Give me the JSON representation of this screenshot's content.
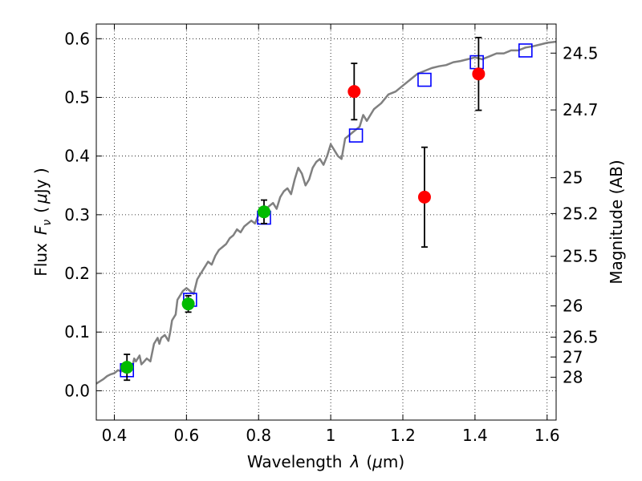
{
  "chart_data": {
    "type": "scatter",
    "xlabel_plain": "Wavelength",
    "xlabel_symbol": "λ",
    "xlabel_unit_open": "(",
    "xlabel_unit_mu": "μ",
    "xlabel_unit_rest": "m)",
    "ylabel_plain": "Flux",
    "ylabel_symbol": "F",
    "ylabel_sub": "ν",
    "ylabel_unit_open": "(",
    "ylabel_unit_mu": "μ",
    "ylabel_unit_rest": "Jy )",
    "y2label": "Magnitude (AB)",
    "xlim": [
      0.35,
      1.625
    ],
    "ylim": [
      -0.05,
      0.625
    ],
    "grid": true,
    "xticks": [
      0.4,
      0.6,
      0.8,
      1.0,
      1.2,
      1.4,
      1.6
    ],
    "xtick_labels": [
      "0.4",
      "0.6",
      "0.8",
      "1",
      "1.2",
      "1.4",
      "1.6"
    ],
    "yticks": [
      0.0,
      0.1,
      0.2,
      0.3,
      0.4,
      0.5,
      0.6
    ],
    "ytick_labels": [
      "0.0",
      "0.1",
      "0.2",
      "0.3",
      "0.4",
      "0.5",
      "0.6"
    ],
    "magnitude_ticks": [
      24.5,
      24.7,
      25,
      25.2,
      25.5,
      26,
      26.5,
      27,
      28
    ],
    "magnitude_tick_labels": [
      "24.5",
      "24.7",
      "25",
      "25.2",
      "25.5",
      "26",
      "26.5",
      "27",
      "28"
    ],
    "colors": {
      "model": "#808080",
      "model_points": "#0000ff",
      "detections": "#00bb00",
      "other_points": "#ff0000",
      "errorbars": "#000000"
    },
    "series": [
      {
        "name": "model-spectrum",
        "style": "line",
        "x": [
          0.35,
          0.37,
          0.38,
          0.39,
          0.4,
          0.41,
          0.42,
          0.43,
          0.44,
          0.45,
          0.455,
          0.46,
          0.47,
          0.475,
          0.48,
          0.49,
          0.5,
          0.51,
          0.52,
          0.525,
          0.53,
          0.54,
          0.55,
          0.555,
          0.56,
          0.57,
          0.575,
          0.58,
          0.59,
          0.6,
          0.61,
          0.62,
          0.63,
          0.64,
          0.65,
          0.66,
          0.67,
          0.68,
          0.69,
          0.7,
          0.71,
          0.72,
          0.73,
          0.74,
          0.75,
          0.76,
          0.77,
          0.78,
          0.79,
          0.8,
          0.81,
          0.82,
          0.83,
          0.84,
          0.85,
          0.86,
          0.87,
          0.88,
          0.89,
          0.9,
          0.91,
          0.92,
          0.93,
          0.94,
          0.95,
          0.96,
          0.97,
          0.98,
          0.99,
          1.0,
          1.01,
          1.02,
          1.03,
          1.04,
          1.05,
          1.06,
          1.07,
          1.08,
          1.09,
          1.1,
          1.12,
          1.14,
          1.16,
          1.18,
          1.2,
          1.22,
          1.24,
          1.26,
          1.28,
          1.3,
          1.32,
          1.34,
          1.36,
          1.38,
          1.4,
          1.42,
          1.44,
          1.46,
          1.48,
          1.5,
          1.52,
          1.54,
          1.56,
          1.58,
          1.6,
          1.625
        ],
        "y": [
          0.012,
          0.02,
          0.025,
          0.028,
          0.03,
          0.035,
          0.033,
          0.036,
          0.038,
          0.04,
          0.055,
          0.05,
          0.06,
          0.045,
          0.048,
          0.055,
          0.05,
          0.08,
          0.09,
          0.08,
          0.09,
          0.095,
          0.085,
          0.1,
          0.12,
          0.13,
          0.155,
          0.16,
          0.17,
          0.175,
          0.17,
          0.165,
          0.19,
          0.2,
          0.21,
          0.22,
          0.215,
          0.23,
          0.24,
          0.245,
          0.25,
          0.26,
          0.265,
          0.275,
          0.27,
          0.28,
          0.285,
          0.29,
          0.285,
          0.3,
          0.305,
          0.31,
          0.315,
          0.32,
          0.31,
          0.33,
          0.34,
          0.345,
          0.335,
          0.36,
          0.38,
          0.37,
          0.35,
          0.36,
          0.38,
          0.39,
          0.395,
          0.385,
          0.4,
          0.42,
          0.41,
          0.4,
          0.395,
          0.43,
          0.435,
          0.44,
          0.445,
          0.45,
          0.47,
          0.46,
          0.48,
          0.49,
          0.505,
          0.51,
          0.52,
          0.53,
          0.54,
          0.545,
          0.55,
          0.553,
          0.555,
          0.56,
          0.562,
          0.565,
          0.568,
          0.565,
          0.57,
          0.575,
          0.575,
          0.58,
          0.58,
          0.585,
          0.587,
          0.59,
          0.593,
          0.595
        ]
      },
      {
        "name": "model-synthetic-photometry",
        "style": "open-square",
        "x": [
          0.435,
          0.61,
          0.815,
          1.07,
          1.26,
          1.405,
          1.54
        ],
        "y": [
          0.035,
          0.155,
          0.295,
          0.435,
          0.53,
          0.56,
          0.58
        ]
      },
      {
        "name": "detections",
        "style": "filled-circle",
        "x": [
          0.435,
          0.605,
          0.815
        ],
        "y": [
          0.04,
          0.148,
          0.305
        ],
        "yerr": [
          0.022,
          0.014,
          0.02
        ]
      },
      {
        "name": "other-photometry",
        "style": "filled-circle",
        "x": [
          1.065,
          1.26,
          1.41
        ],
        "y": [
          0.51,
          0.33,
          0.54
        ],
        "yerr": [
          0.048,
          0.085,
          0.062
        ]
      }
    ]
  }
}
